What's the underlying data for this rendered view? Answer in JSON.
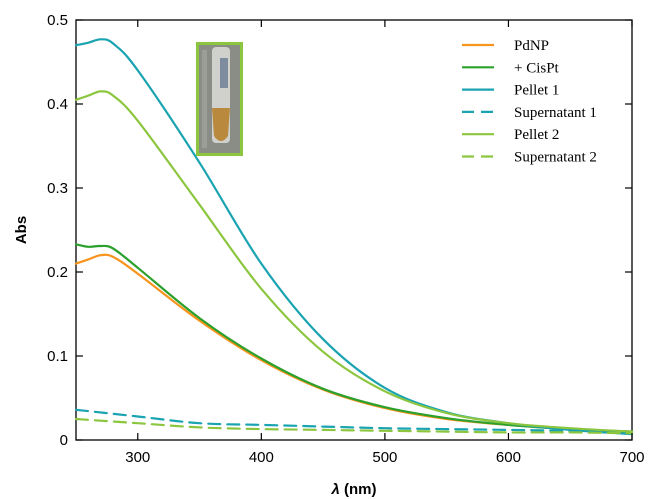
{
  "chart_data": {
    "type": "line",
    "xlabel_symbol": "λ",
    "xlabel_unit": " (nm)",
    "ylabel": "Abs",
    "xlim": [
      250,
      700
    ],
    "ylim": [
      0,
      0.5
    ],
    "x_ticks": [
      300,
      400,
      500,
      600,
      700
    ],
    "y_ticks": [
      0,
      0.1,
      0.2,
      0.3,
      0.4,
      0.5
    ],
    "y_tick_labels": [
      "0",
      "0.1",
      "0.2",
      "0.3",
      "0.4",
      "0.5"
    ],
    "grid": false,
    "legend_position": "top-right",
    "inset_image": "sample vial photo",
    "series": [
      {
        "name": "PdNP",
        "color": "#f7941d",
        "dash": "solid",
        "x": [
          250,
          260,
          270,
          280,
          300,
          350,
          400,
          450,
          500,
          550,
          600,
          650,
          700
        ],
        "y": [
          0.21,
          0.215,
          0.22,
          0.218,
          0.198,
          0.142,
          0.095,
          0.06,
          0.038,
          0.025,
          0.018,
          0.013,
          0.01
        ]
      },
      {
        "name": "+ CisPt",
        "color": "#2ca02c",
        "dash": "solid",
        "x": [
          250,
          260,
          270,
          280,
          300,
          350,
          400,
          450,
          500,
          550,
          600,
          650,
          700
        ],
        "y": [
          0.233,
          0.23,
          0.231,
          0.228,
          0.205,
          0.145,
          0.097,
          0.061,
          0.039,
          0.026,
          0.018,
          0.013,
          0.01
        ]
      },
      {
        "name": "Pellet 1",
        "color": "#1aa3b0",
        "dash": "solid",
        "x": [
          250,
          260,
          270,
          280,
          300,
          350,
          400,
          450,
          500,
          550,
          600,
          650,
          700
        ],
        "y": [
          0.47,
          0.473,
          0.477,
          0.472,
          0.44,
          0.33,
          0.21,
          0.12,
          0.062,
          0.033,
          0.02,
          0.012,
          0.007
        ]
      },
      {
        "name": "Supernatant 1",
        "color": "#1aa3b0",
        "dash": "dashed",
        "x": [
          250,
          300,
          350,
          400,
          450,
          500,
          550,
          600,
          650,
          700
        ],
        "y": [
          0.036,
          0.028,
          0.02,
          0.018,
          0.016,
          0.014,
          0.013,
          0.012,
          0.011,
          0.01
        ]
      },
      {
        "name": "Pellet 2",
        "color": "#8cc63f",
        "dash": "solid",
        "x": [
          250,
          260,
          270,
          280,
          300,
          350,
          400,
          450,
          500,
          550,
          600,
          650,
          700
        ],
        "y": [
          0.405,
          0.41,
          0.415,
          0.41,
          0.38,
          0.28,
          0.18,
          0.105,
          0.058,
          0.032,
          0.02,
          0.014,
          0.01
        ]
      },
      {
        "name": "Supernatant 2",
        "color": "#8cc63f",
        "dash": "dashed",
        "x": [
          250,
          300,
          350,
          400,
          450,
          500,
          550,
          600,
          650,
          700
        ],
        "y": [
          0.025,
          0.02,
          0.015,
          0.013,
          0.012,
          0.011,
          0.01,
          0.009,
          0.009,
          0.008
        ]
      }
    ]
  }
}
